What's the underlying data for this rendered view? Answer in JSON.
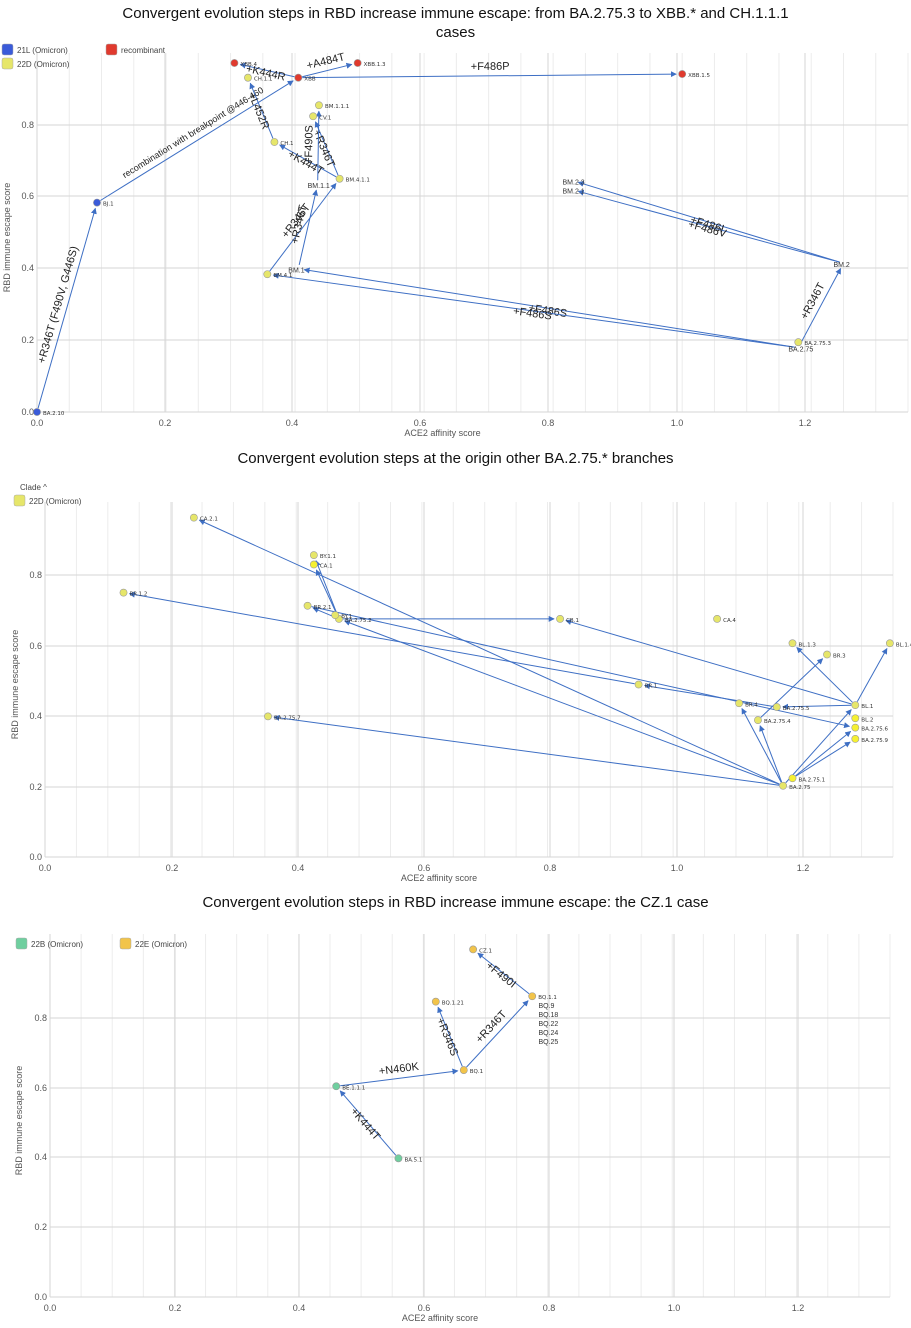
{
  "panels": [
    {
      "title": "Convergent evolution steps in RBD increase immune escape: from BA.2.75.3 to XBB.* and CH.1.1.1",
      "title2": "cases",
      "clade_toggle": "",
      "legend": [
        {
          "label": "21L (Omicron)",
          "color": "#3a5bd9"
        },
        {
          "label": "recombinant",
          "color": "#e03a2e"
        },
        {
          "label": "22D (Omicron)",
          "color": "#e6e66a"
        }
      ]
    },
    {
      "title": "Convergent evolution steps at the origin other BA.2.75.* branches",
      "title2": "",
      "clade_toggle": "Clade ^",
      "legend": [
        {
          "label": "22D (Omicron)",
          "color": "#e6e66a"
        }
      ]
    },
    {
      "title": "Convergent evolution steps in RBD increase immune escape: the CZ.1 case",
      "title2": "",
      "clade_toggle": "",
      "legend": [
        {
          "label": "22B (Omicron)",
          "color": "#6fcf9f"
        },
        {
          "label": "22E (Omicron)",
          "color": "#f2c44a"
        }
      ]
    }
  ],
  "chart_data": [
    {
      "type": "scatter",
      "title": "Convergent evolution steps in RBD increase immune escape: from BA.2.75.3 to XBB.* and CH.1.1.1 cases",
      "xlabel": "ACE2 affinity score",
      "ylabel": "RBD immune escape score",
      "xlim": [
        0,
        1.35
      ],
      "ylim": [
        0,
        0.95
      ],
      "xticks": [
        0.0,
        0.2,
        0.4,
        0.6,
        0.8,
        1.0,
        1.2
      ],
      "yticks": [
        0.0,
        0.2,
        0.4,
        0.6,
        0.8
      ],
      "xtick_labels": [
        "0.0",
        "0.2",
        "0.4",
        "0.6",
        "0.8",
        "1.0",
        "1.2"
      ],
      "ytick_labels": [
        "0.0",
        "0.2",
        "0.4",
        "0.6",
        "0.8"
      ],
      "points": [
        {
          "label": "BA.2.10",
          "x": 0.0,
          "y": 0.0,
          "clade": "21L (Omicron)",
          "color": "#3a5bd9"
        },
        {
          "label": "BJ.1",
          "x": 0.093,
          "y": 0.57,
          "clade": "21L (Omicron)",
          "color": "#3a5bd9"
        },
        {
          "label": "XBB",
          "x": 0.405,
          "y": 0.91,
          "clade": "recombinant",
          "color": "#e03a2e"
        },
        {
          "label": "XBB.4",
          "x": 0.306,
          "y": 0.95,
          "clade": "recombinant",
          "color": "#e03a2e"
        },
        {
          "label": "XBB.1.3",
          "x": 0.497,
          "y": 0.95,
          "clade": "recombinant",
          "color": "#e03a2e"
        },
        {
          "label": "XBB.1.5",
          "x": 1.0,
          "y": 0.92,
          "clade": "recombinant",
          "color": "#e03a2e"
        },
        {
          "label": "CH.1.1",
          "x": 0.327,
          "y": 0.91,
          "clade": "22D (Omicron)",
          "color": "#e6e66a"
        },
        {
          "label": "CH.1",
          "x": 0.368,
          "y": 0.735,
          "clade": "22D (Omicron)",
          "color": "#e6e66a"
        },
        {
          "label": "CV.1",
          "x": 0.428,
          "y": 0.805,
          "clade": "22D (Omicron)",
          "color": "#e6e66a"
        },
        {
          "label": "BM.1.1.1",
          "x": 0.437,
          "y": 0.835,
          "clade": "22D (Omicron)",
          "color": "#e6e66a"
        },
        {
          "label": "BM.4.1.1",
          "x": 0.469,
          "y": 0.635,
          "clade": "22D (Omicron)",
          "color": "#e6e66a"
        },
        {
          "label": "BM.4.1",
          "x": 0.357,
          "y": 0.375,
          "clade": "22D (Omicron)",
          "color": "#e6e66a"
        },
        {
          "label": "BA.2.75.3",
          "x": 1.18,
          "y": 0.19,
          "clade": "22D (Omicron)",
          "color": "#e6e66a"
        }
      ],
      "text_labels": [
        "BM.1.1",
        "BM.1",
        "BM.2",
        "BM.2.3",
        "BM.2.1",
        "BA.2.75"
      ],
      "arrows": [
        {
          "from": "BA.2.10",
          "to": "BJ.1",
          "label": "+R346T (F490V, G446S)"
        },
        {
          "from": "BJ.1",
          "to": "XBB",
          "label": "recombination with breakpoint @446-460"
        },
        {
          "from": "XBB",
          "to": "XBB.4",
          "label": "+K444R"
        },
        {
          "from": "XBB",
          "to": "XBB.1.3",
          "label": "+A484T"
        },
        {
          "from": "XBB",
          "to": "XBB.1.5",
          "label": "+F486P"
        },
        {
          "from": "CH.1",
          "to": "CH.1.1",
          "label": "+L452R"
        },
        {
          "from": "BM.4.1.1",
          "to": "CH.1",
          "label": "+K444T"
        },
        {
          "from": "BM.4.1.1",
          "to": "CV.1",
          "label": "+R346T"
        },
        {
          "from": "BM.1.1",
          "to": "BM.1.1.1",
          "label": "+F490S"
        },
        {
          "from": "BM.4.1",
          "to": "BM.4.1.1",
          "label": "+R346T"
        },
        {
          "from": "BM.1",
          "to": "BM.1.1",
          "label": "+R346T"
        },
        {
          "from": "BM.2",
          "to": "BM.2.3",
          "label": "+F486I"
        },
        {
          "from": "BM.2",
          "to": "BM.2.1",
          "label": "+F486V"
        },
        {
          "from": "BA.2.75",
          "to": "BM.2",
          "label": "+R346T"
        },
        {
          "from": "BA.2.75",
          "to": "BM.1",
          "label": "+F486S"
        },
        {
          "from": "BA.2.75",
          "to": "BM.4.1",
          "label": "+F486S"
        }
      ]
    },
    {
      "type": "scatter",
      "title": "Convergent evolution steps at the origin other BA.2.75.* branches",
      "xlabel": "ACE2 affinity score",
      "ylabel": "RBD immune escape score",
      "xlim": [
        0,
        1.35
      ],
      "ylim": [
        0,
        0.92
      ],
      "xticks": [
        0.0,
        0.2,
        0.4,
        0.6,
        0.8,
        1.0,
        1.2
      ],
      "yticks": [
        0.0,
        0.2,
        0.4,
        0.6,
        0.8
      ],
      "xtick_labels": [
        "0.0",
        "0.2",
        "0.4",
        "0.6",
        "0.8",
        "1.0",
        "1.2"
      ],
      "ytick_labels": [
        "0.0",
        "0.2",
        "0.4",
        "0.6",
        "0.8"
      ],
      "points": [
        {
          "label": "CA.2.1",
          "x": 0.237,
          "y": 0.905,
          "color": "#e6e66a"
        },
        {
          "label": "BY.1.1",
          "x": 0.428,
          "y": 0.805,
          "color": "#e6e66a"
        },
        {
          "label": "CA.1",
          "x": 0.428,
          "y": 0.78,
          "color": "#f5f032"
        },
        {
          "label": "BR.1.2",
          "x": 0.125,
          "y": 0.705,
          "color": "#e6e66a"
        },
        {
          "label": "BA.2.75.2",
          "x": 0.468,
          "y": 0.635,
          "color": "#e6e66a"
        },
        {
          "label": "BY.1",
          "x": 0.462,
          "y": 0.645,
          "color": "#e6e66a"
        },
        {
          "label": "BR.2.1",
          "x": 0.418,
          "y": 0.67,
          "color": "#e6e66a"
        },
        {
          "label": "CB.1",
          "x": 0.82,
          "y": 0.635,
          "color": "#e6e66a"
        },
        {
          "label": "CA.4",
          "x": 1.07,
          "y": 0.635,
          "color": "#e6e66a"
        },
        {
          "label": "BL.1.3",
          "x": 1.19,
          "y": 0.57,
          "color": "#e6e66a"
        },
        {
          "label": "BR.3",
          "x": 1.245,
          "y": 0.54,
          "color": "#e6e66a"
        },
        {
          "label": "BL.1.4",
          "x": 1.345,
          "y": 0.57,
          "color": "#e6e66a"
        },
        {
          "label": "BR.1",
          "x": 0.945,
          "y": 0.46,
          "color": "#e6e66a"
        },
        {
          "label": "BR.4",
          "x": 1.105,
          "y": 0.41,
          "color": "#e6e66a"
        },
        {
          "label": "BA.2.75.5",
          "x": 1.165,
          "y": 0.4,
          "color": "#e6e66a"
        },
        {
          "label": "BA.2.75.4",
          "x": 1.135,
          "y": 0.365,
          "color": "#e6e66a"
        },
        {
          "label": "BL.1",
          "x": 1.29,
          "y": 0.405,
          "color": "#e6e66a"
        },
        {
          "label": "BL.2",
          "x": 1.29,
          "y": 0.37,
          "color": "#f5f032"
        },
        {
          "label": "BA.2.75.6",
          "x": 1.29,
          "y": 0.345,
          "color": "#f5f032"
        },
        {
          "label": "BA.2.75.9",
          "x": 1.29,
          "y": 0.315,
          "color": "#f5f032"
        },
        {
          "label": "BA.2.75.7",
          "x": 0.355,
          "y": 0.375,
          "color": "#e6e66a"
        },
        {
          "label": "BA.2.75.1",
          "x": 1.19,
          "y": 0.21,
          "color": "#f5f032"
        },
        {
          "label": "BA.2.75",
          "x": 1.175,
          "y": 0.19,
          "color": "#e6e66a"
        }
      ],
      "arrows": [
        {
          "from": "BA.2.75",
          "to": "CA.2.1"
        },
        {
          "from": "BA.2.75",
          "to": "BA.2.75.7"
        },
        {
          "from": "BA.2.75",
          "to": "BA.2.75.2"
        },
        {
          "from": "BA.2.75",
          "to": "BA.2.75.4"
        },
        {
          "from": "BA.2.75",
          "to": "BL.1"
        },
        {
          "from": "BA.2.75",
          "to": "BR.4"
        },
        {
          "from": "BA.2.75.1",
          "to": "BA.2.75.9"
        },
        {
          "from": "BA.2.75.1",
          "to": "BA.2.75.6"
        },
        {
          "from": "BA.2.75.2",
          "to": "CA.1"
        },
        {
          "from": "BA.2.75.2",
          "to": "BY.1.1"
        },
        {
          "from": "BA.2.75.2",
          "to": "BR.2.1"
        },
        {
          "from": "BA.2.75.2",
          "to": "CB.1"
        },
        {
          "from": "BR.1",
          "to": "BR.1.2"
        },
        {
          "from": "BA.2.75.5",
          "to": "BR.1"
        },
        {
          "from": "BL.1",
          "to": "BA.2.75.5"
        },
        {
          "from": "BL.1",
          "to": "CB.1"
        },
        {
          "from": "BL.1",
          "to": "BL.1.3"
        },
        {
          "from": "BL.1",
          "to": "BL.1.4"
        },
        {
          "from": "BA.2.75.4",
          "to": "BR.3"
        },
        {
          "from": "BR.2.1",
          "to": "BA.2.75.6"
        }
      ]
    },
    {
      "type": "scatter",
      "title": "Convergent evolution steps in RBD increase immune escape: the CZ.1 case",
      "xlabel": "ACE2 affinity score",
      "ylabel": "RBD immune escape score",
      "xlim": [
        0,
        1.35
      ],
      "ylim": [
        0,
        0.98
      ],
      "xticks": [
        0.0,
        0.2,
        0.4,
        0.6,
        0.8,
        1.0,
        1.2
      ],
      "yticks": [
        0.0,
        0.2,
        0.4,
        0.6,
        0.8
      ],
      "xtick_labels": [
        "0.0",
        "0.2",
        "0.4",
        "0.6",
        "0.8",
        "1.0",
        "1.2"
      ],
      "ytick_labels": [
        "0.0",
        "0.2",
        "0.4",
        "0.6",
        "0.8"
      ],
      "points": [
        {
          "label": "BA.5.1",
          "x": 0.56,
          "y": 0.385,
          "clade": "22B (Omicron)",
          "color": "#6fcf9f"
        },
        {
          "label": "BE.1.1.1",
          "x": 0.46,
          "y": 0.585,
          "clade": "22B (Omicron)",
          "color": "#6fcf9f"
        },
        {
          "label": "BQ.1",
          "x": 0.665,
          "y": 0.63,
          "clade": "22E (Omicron)",
          "color": "#f2c44a"
        },
        {
          "label": "BQ.1.21",
          "x": 0.62,
          "y": 0.82,
          "clade": "22E (Omicron)",
          "color": "#f2c44a"
        },
        {
          "label": "BQ.1.1",
          "x": 0.775,
          "y": 0.835,
          "clade": "22E (Omicron)",
          "color": "#f2c44a"
        },
        {
          "label": "CZ.1",
          "x": 0.68,
          "y": 0.965,
          "clade": "22E (Omicron)",
          "color": "#f2c44a"
        }
      ],
      "text_labels": [
        "BQ.9",
        "BQ.18",
        "BQ.22",
        "BQ.24",
        "BQ.25"
      ],
      "arrows": [
        {
          "from": "BA.5.1",
          "to": "BE.1.1.1",
          "label": "+K444T"
        },
        {
          "from": "BE.1.1.1",
          "to": "BQ.1",
          "label": "+N460K"
        },
        {
          "from": "BQ.1",
          "to": "BQ.1.21",
          "label": "+R346S"
        },
        {
          "from": "BQ.1",
          "to": "BQ.1.1",
          "label": "+R346T"
        },
        {
          "from": "BQ.1.1",
          "to": "CZ.1",
          "label": "+F490I"
        }
      ]
    }
  ]
}
